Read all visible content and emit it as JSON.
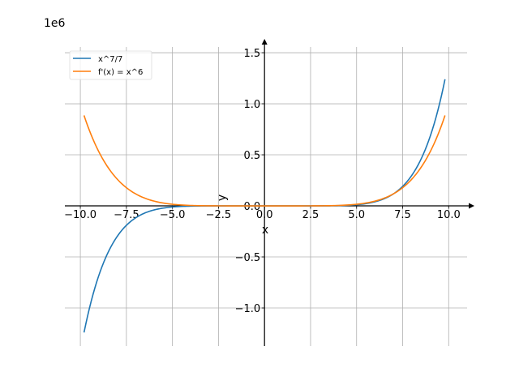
{
  "chart_data": {
    "type": "line",
    "title": "",
    "xlabel": "x",
    "ylabel": "y",
    "y_offset_label": "1e6",
    "xlim": [
      -10.84,
      11.0
    ],
    "ylim": [
      -1.373,
      1.556
    ],
    "y_scale": 1000000,
    "grid": true,
    "legend_position": "top-left",
    "x_ticks": [
      -10.0,
      -7.5,
      -5.0,
      -2.5,
      0.0,
      2.5,
      5.0,
      7.5,
      10.0
    ],
    "x_tick_labels": [
      "−10.0",
      "−7.5",
      "−5.0",
      "−2.5",
      "0.0",
      "2.5",
      "5.0",
      "7.5",
      "10.0"
    ],
    "y_ticks": [
      -1.0,
      -0.5,
      0.0,
      0.5,
      1.0,
      1.5
    ],
    "y_tick_labels": [
      "−1.0",
      "−0.5",
      "0.0",
      "0.5",
      "1.0",
      "1.5"
    ],
    "x_domain": [
      -9.8,
      9.8
    ],
    "series": [
      {
        "name": "x^7/7",
        "expr": "x^7/7",
        "color": "#1f77b4",
        "endpoints": [
          [
            -9.8,
            -1240179
          ],
          [
            9.8,
            1240179
          ]
        ]
      },
      {
        "name": "f'(x) = x^6",
        "expr": "x^6",
        "color": "#ff7f0e",
        "endpoints": [
          [
            -9.8,
            885842
          ],
          [
            9.8,
            885842
          ]
        ]
      }
    ]
  }
}
